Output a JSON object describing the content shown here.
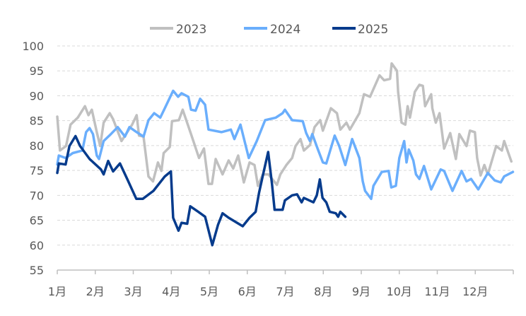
{
  "chart_data": {
    "type": "line",
    "title": "",
    "xlabel": "",
    "ylabel": "",
    "ylim": [
      55,
      100
    ],
    "yticks": [
      55,
      60,
      65,
      70,
      75,
      80,
      85,
      90,
      95,
      100
    ],
    "xlim": [
      1,
      13
    ],
    "xtick_labels": [
      "1月",
      "2月",
      "3月",
      "4月",
      "5月",
      "6月",
      "7月",
      "8月",
      "9月",
      "10月",
      "11月",
      "12月"
    ],
    "grid": "horizontal dashed",
    "legend_position": "top",
    "series": [
      {
        "name": "2023",
        "color": "#c0c0c0",
        "points": [
          [
            1.0,
            85.8
          ],
          [
            1.07,
            79.0
          ],
          [
            1.23,
            79.9
          ],
          [
            1.35,
            84.2
          ],
          [
            1.54,
            85.6
          ],
          [
            1.73,
            87.9
          ],
          [
            1.82,
            86.1
          ],
          [
            1.91,
            87.2
          ],
          [
            2.04,
            82.7
          ],
          [
            2.13,
            79.9
          ],
          [
            2.22,
            84.6
          ],
          [
            2.38,
            86.5
          ],
          [
            2.47,
            85.3
          ],
          [
            2.69,
            80.9
          ],
          [
            2.97,
            84.2
          ],
          [
            3.09,
            86.1
          ],
          [
            3.15,
            82.0
          ],
          [
            3.27,
            81.8
          ],
          [
            3.4,
            73.8
          ],
          [
            3.52,
            72.8
          ],
          [
            3.65,
            76.6
          ],
          [
            3.74,
            74.9
          ],
          [
            3.8,
            78.5
          ],
          [
            3.96,
            79.7
          ],
          [
            4.02,
            84.9
          ],
          [
            4.2,
            85.1
          ],
          [
            4.3,
            87.2
          ],
          [
            4.52,
            82.3
          ],
          [
            4.73,
            77.5
          ],
          [
            4.86,
            79.4
          ],
          [
            4.98,
            72.3
          ],
          [
            5.07,
            72.3
          ],
          [
            5.17,
            77.3
          ],
          [
            5.35,
            74.2
          ],
          [
            5.51,
            77.0
          ],
          [
            5.63,
            75.4
          ],
          [
            5.76,
            78.0
          ],
          [
            5.91,
            72.6
          ],
          [
            6.06,
            76.6
          ],
          [
            6.19,
            76.1
          ],
          [
            6.28,
            71.9
          ],
          [
            6.41,
            74.2
          ],
          [
            6.56,
            74.2
          ],
          [
            6.78,
            72.1
          ],
          [
            6.87,
            74.2
          ],
          [
            7.03,
            76.1
          ],
          [
            7.18,
            77.5
          ],
          [
            7.27,
            79.9
          ],
          [
            7.4,
            81.3
          ],
          [
            7.49,
            79.0
          ],
          [
            7.65,
            80.1
          ],
          [
            7.77,
            83.7
          ],
          [
            7.92,
            85.1
          ],
          [
            7.99,
            83.0
          ],
          [
            8.2,
            87.5
          ],
          [
            8.36,
            86.5
          ],
          [
            8.45,
            83.2
          ],
          [
            8.61,
            84.6
          ],
          [
            8.7,
            83.2
          ],
          [
            8.95,
            86.5
          ],
          [
            9.07,
            90.3
          ],
          [
            9.23,
            89.8
          ],
          [
            9.48,
            94.1
          ],
          [
            9.6,
            93.1
          ],
          [
            9.76,
            93.4
          ],
          [
            9.8,
            96.5
          ],
          [
            9.94,
            95.0
          ],
          [
            9.97,
            90.8
          ],
          [
            10.06,
            84.6
          ],
          [
            10.16,
            84.2
          ],
          [
            10.22,
            87.9
          ],
          [
            10.28,
            85.6
          ],
          [
            10.41,
            90.8
          ],
          [
            10.53,
            92.2
          ],
          [
            10.62,
            92.0
          ],
          [
            10.68,
            87.9
          ],
          [
            10.84,
            90.3
          ],
          [
            10.87,
            87.5
          ],
          [
            10.96,
            84.6
          ],
          [
            11.06,
            86.5
          ],
          [
            11.18,
            79.4
          ],
          [
            11.34,
            82.5
          ],
          [
            11.49,
            77.3
          ],
          [
            11.58,
            82.3
          ],
          [
            11.77,
            79.9
          ],
          [
            11.86,
            83.0
          ],
          [
            11.99,
            82.7
          ],
          [
            12.05,
            77.5
          ],
          [
            12.14,
            74.0
          ],
          [
            12.24,
            76.1
          ],
          [
            12.33,
            74.2
          ],
          [
            12.55,
            79.9
          ],
          [
            12.7,
            79.0
          ],
          [
            12.76,
            80.9
          ],
          [
            12.95,
            76.8
          ]
        ]
      },
      {
        "name": "2024",
        "color": "#6aaefc",
        "points": [
          [
            1.0,
            76.2
          ],
          [
            1.04,
            78.0
          ],
          [
            1.22,
            77.5
          ],
          [
            1.41,
            78.5
          ],
          [
            1.66,
            79.0
          ],
          [
            1.76,
            82.7
          ],
          [
            1.85,
            83.5
          ],
          [
            1.94,
            82.3
          ],
          [
            2.04,
            78.0
          ],
          [
            2.1,
            77.3
          ],
          [
            2.22,
            80.9
          ],
          [
            2.41,
            82.3
          ],
          [
            2.59,
            83.7
          ],
          [
            2.78,
            81.8
          ],
          [
            2.9,
            83.7
          ],
          [
            3.09,
            82.7
          ],
          [
            3.27,
            81.8
          ],
          [
            3.4,
            85.1
          ],
          [
            3.55,
            86.5
          ],
          [
            3.71,
            85.6
          ],
          [
            3.83,
            87.5
          ],
          [
            4.05,
            91.0
          ],
          [
            4.18,
            89.8
          ],
          [
            4.27,
            90.5
          ],
          [
            4.45,
            89.8
          ],
          [
            4.52,
            87.2
          ],
          [
            4.64,
            87.0
          ],
          [
            4.76,
            89.4
          ],
          [
            4.89,
            88.2
          ],
          [
            4.98,
            83.2
          ],
          [
            5.32,
            82.7
          ],
          [
            5.57,
            83.2
          ],
          [
            5.66,
            81.3
          ],
          [
            5.82,
            84.2
          ],
          [
            6.04,
            77.5
          ],
          [
            6.25,
            80.9
          ],
          [
            6.47,
            85.1
          ],
          [
            6.75,
            85.6
          ],
          [
            6.93,
            86.5
          ],
          [
            6.99,
            87.2
          ],
          [
            7.18,
            85.1
          ],
          [
            7.46,
            84.9
          ],
          [
            7.55,
            82.5
          ],
          [
            7.65,
            80.9
          ],
          [
            7.71,
            82.3
          ],
          [
            7.86,
            79.2
          ],
          [
            7.99,
            76.6
          ],
          [
            8.08,
            76.4
          ],
          [
            8.3,
            82.0
          ],
          [
            8.42,
            79.9
          ],
          [
            8.58,
            76.1
          ],
          [
            8.76,
            81.3
          ],
          [
            8.95,
            77.5
          ],
          [
            9.04,
            72.8
          ],
          [
            9.1,
            70.9
          ],
          [
            9.26,
            69.3
          ],
          [
            9.32,
            71.9
          ],
          [
            9.54,
            74.7
          ],
          [
            9.72,
            74.9
          ],
          [
            9.79,
            71.6
          ],
          [
            9.91,
            71.9
          ],
          [
            10.0,
            77.5
          ],
          [
            10.13,
            80.9
          ],
          [
            10.19,
            76.6
          ],
          [
            10.25,
            79.2
          ],
          [
            10.37,
            77.0
          ],
          [
            10.44,
            74.2
          ],
          [
            10.53,
            73.3
          ],
          [
            10.65,
            75.9
          ],
          [
            10.84,
            71.2
          ],
          [
            11.09,
            75.2
          ],
          [
            11.18,
            74.9
          ],
          [
            11.4,
            70.9
          ],
          [
            11.64,
            74.9
          ],
          [
            11.77,
            72.8
          ],
          [
            11.89,
            73.3
          ],
          [
            12.08,
            71.2
          ],
          [
            12.33,
            74.5
          ],
          [
            12.51,
            73.0
          ],
          [
            12.67,
            72.6
          ],
          [
            12.76,
            73.8
          ],
          [
            12.99,
            74.7
          ]
        ]
      },
      {
        "name": "2025",
        "color": "#063b8c",
        "points": [
          [
            1.0,
            74.5
          ],
          [
            1.04,
            76.4
          ],
          [
            1.22,
            76.2
          ],
          [
            1.32,
            79.9
          ],
          [
            1.48,
            81.9
          ],
          [
            1.6,
            79.9
          ],
          [
            1.85,
            77.3
          ],
          [
            2.15,
            75.2
          ],
          [
            2.22,
            74.2
          ],
          [
            2.34,
            76.9
          ],
          [
            2.47,
            74.8
          ],
          [
            2.65,
            76.4
          ],
          [
            2.84,
            73.3
          ],
          [
            3.08,
            69.3
          ],
          [
            3.25,
            69.3
          ],
          [
            3.53,
            70.9
          ],
          [
            3.83,
            73.8
          ],
          [
            3.99,
            74.8
          ],
          [
            4.05,
            65.5
          ],
          [
            4.19,
            62.9
          ],
          [
            4.27,
            64.5
          ],
          [
            4.42,
            64.3
          ],
          [
            4.5,
            67.8
          ],
          [
            4.71,
            66.7
          ],
          [
            4.89,
            65.7
          ],
          [
            5.08,
            60.0
          ],
          [
            5.23,
            64.1
          ],
          [
            5.35,
            66.4
          ],
          [
            5.51,
            65.5
          ],
          [
            5.88,
            63.8
          ],
          [
            6.06,
            65.5
          ],
          [
            6.22,
            66.7
          ],
          [
            6.31,
            70.5
          ],
          [
            6.41,
            74.0
          ],
          [
            6.55,
            78.7
          ],
          [
            6.65,
            72.3
          ],
          [
            6.72,
            67.1
          ],
          [
            6.93,
            67.1
          ],
          [
            6.99,
            69.0
          ],
          [
            7.18,
            70.0
          ],
          [
            7.31,
            70.2
          ],
          [
            7.43,
            68.6
          ],
          [
            7.49,
            69.5
          ],
          [
            7.74,
            68.6
          ],
          [
            7.83,
            70.0
          ],
          [
            7.91,
            73.2
          ],
          [
            7.98,
            69.5
          ],
          [
            8.08,
            68.6
          ],
          [
            8.17,
            66.7
          ],
          [
            8.33,
            66.4
          ],
          [
            8.39,
            65.7
          ],
          [
            8.45,
            66.7
          ],
          [
            8.58,
            65.7
          ]
        ]
      }
    ]
  }
}
